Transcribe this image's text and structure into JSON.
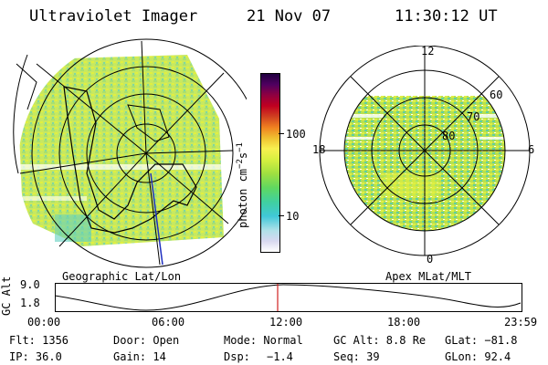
{
  "header": {
    "instrument": "Ultraviolet Imager",
    "date": "21 Nov 07",
    "time": "11:30:12 UT"
  },
  "colorbar": {
    "unit_label": "photon cm",
    "unit_sup": "−2",
    "unit_s": "s",
    "unit_sup2": "−1",
    "tick_high": "100",
    "tick_low": "10",
    "colors": [
      "#ffffff",
      "#d8d8f0",
      "#b0e0e8",
      "#40c8d8",
      "#40d0a0",
      "#60d860",
      "#a0e040",
      "#d8f040",
      "#f8f050",
      "#f0c030",
      "#f08020",
      "#d04020",
      "#c00020",
      "#900040",
      "#500060",
      "#200040"
    ]
  },
  "left_map": {
    "caption": "Geographic Lat/Lon",
    "image_fill": "#c8e860"
  },
  "right_map": {
    "caption": "Apex MLat/MLT",
    "mlt_12": "12",
    "mlt_18": "18",
    "mlt_6": "6",
    "mlt_0": "0",
    "lat_60": "60",
    "lat_70": "70",
    "lat_80": "80",
    "image_fill": "#b8e050"
  },
  "timeline": {
    "axis_title": "GC Alt",
    "y_top": "9.0",
    "y_bottom": "1.8",
    "ticks": [
      "00:00",
      "06:00",
      "12:00",
      "18:00",
      "23:59"
    ],
    "marker_color": "#d02020"
  },
  "footer": {
    "flt": "Flt: 1356",
    "door": "Door: Open",
    "mode": "Mode: Normal",
    "gcalt": "GC Alt: 8.8 Re",
    "glat": "GLat: −81.8",
    "ip": "IP: 36.0",
    "gain": "Gain: 14",
    "dsp_label": "Dsp:",
    "dsp_value": "−1.4",
    "seq": "Seq: 39",
    "glon": "GLon: 92.4"
  }
}
